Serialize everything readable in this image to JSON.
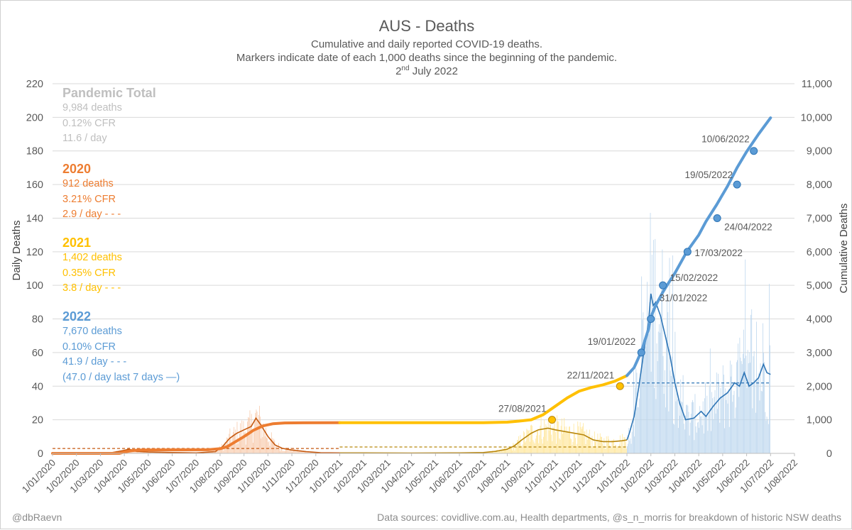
{
  "chart_data": {
    "type": "combo",
    "title": "AUS - Deaths",
    "subtitle_lines": [
      "Cumulative and daily reported COVID-19 deaths.",
      "Markers indicate date of each 1,000 deaths since the beginning of the pandemic."
    ],
    "date_line": {
      "day": "2",
      "suffix": "nd",
      "rest": " July 2022"
    },
    "ylabel_left": "Daily Deaths",
    "ylabel_right": "Cumulative Deaths",
    "ylim_left": [
      0,
      220
    ],
    "ylim_right": [
      0,
      11000
    ],
    "left_ticks": [
      "0",
      "20",
      "40",
      "60",
      "80",
      "100",
      "120",
      "140",
      "160",
      "180",
      "200",
      "220"
    ],
    "right_ticks": [
      "0",
      "1,000",
      "2,000",
      "3,000",
      "4,000",
      "5,000",
      "6,000",
      "7,000",
      "8,000",
      "9,000",
      "10,000",
      "11,000"
    ],
    "x_ticks": [
      "1/01/2020",
      "1/02/2020",
      "1/03/2020",
      "1/04/2020",
      "1/05/2020",
      "1/06/2020",
      "1/07/2020",
      "1/08/2020",
      "1/09/2020",
      "1/10/2020",
      "1/11/2020",
      "1/12/2020",
      "1/01/2021",
      "1/02/2021",
      "1/03/2021",
      "1/04/2021",
      "1/05/2021",
      "1/06/2021",
      "1/07/2021",
      "1/08/2021",
      "1/09/2021",
      "1/10/2021",
      "1/11/2021",
      "1/12/2021",
      "1/01/2022",
      "1/02/2022",
      "1/03/2022",
      "1/04/2022",
      "1/05/2022",
      "1/06/2022",
      "1/07/2022",
      "1/08/2022"
    ],
    "colors": {
      "y2020": "#ED7D31",
      "y2021": "#FFC000",
      "y2022": "#5B9BD5",
      "total": "#BFBFBF",
      "axis": "#595959",
      "grid": "#D9D9D9",
      "dark2021": "#B8860B",
      "dark2022": "#2E75B6",
      "dark2020": "#C55A11"
    },
    "cumulative": [
      [
        0,
        0
      ],
      [
        2.8,
        0
      ],
      [
        3.0,
        40
      ],
      [
        3.3,
        80
      ],
      [
        3.6,
        100
      ],
      [
        4.5,
        103
      ],
      [
        5.5,
        106
      ],
      [
        6.5,
        108
      ],
      [
        7.0,
        140
      ],
      [
        7.3,
        200
      ],
      [
        7.6,
        330
      ],
      [
        8.0,
        500
      ],
      [
        8.4,
        690
      ],
      [
        8.8,
        820
      ],
      [
        9.2,
        880
      ],
      [
        9.7,
        905
      ],
      [
        10.5,
        910
      ],
      [
        12.0,
        912
      ],
      [
        12,
        912
      ],
      [
        14,
        912
      ],
      [
        16,
        913
      ],
      [
        18,
        915
      ],
      [
        19.0,
        930
      ],
      [
        19.5,
        960
      ],
      [
        20.0,
        1000
      ],
      [
        20.5,
        1150
      ],
      [
        21.0,
        1400
      ],
      [
        21.5,
        1650
      ],
      [
        22.0,
        1850
      ],
      [
        22.5,
        1960
      ],
      [
        23.0,
        2040
      ],
      [
        23.5,
        2150
      ],
      [
        24.0,
        2314
      ],
      [
        24,
        2314
      ],
      [
        24.3,
        2550
      ],
      [
        24.6,
        3030
      ],
      [
        24.9,
        3700
      ],
      [
        25.0,
        4060
      ],
      [
        25.2,
        4400
      ],
      [
        25.5,
        4800
      ],
      [
        25.7,
        5030
      ],
      [
        26.0,
        5360
      ],
      [
        26.5,
        6000
      ],
      [
        27.0,
        6500
      ],
      [
        27.3,
        6900
      ],
      [
        27.75,
        7400
      ],
      [
        28.2,
        7950
      ],
      [
        28.6,
        8500
      ],
      [
        29.0,
        8980
      ],
      [
        29.5,
        9500
      ],
      [
        30.0,
        9984
      ]
    ],
    "daily_smooth": [
      [
        0,
        0
      ],
      [
        2.5,
        0.5
      ],
      [
        2.9,
        1.5
      ],
      [
        3.2,
        2.5
      ],
      [
        3.5,
        1.2
      ],
      [
        4,
        0.8
      ],
      [
        5,
        0.5
      ],
      [
        6,
        0.3
      ],
      [
        6.8,
        1
      ],
      [
        7.1,
        4
      ],
      [
        7.4,
        9
      ],
      [
        7.7,
        12
      ],
      [
        8.0,
        14
      ],
      [
        8.3,
        16
      ],
      [
        8.5,
        21
      ],
      [
        8.7,
        17
      ],
      [
        9.0,
        10
      ],
      [
        9.3,
        5
      ],
      [
        9.6,
        3
      ],
      [
        10,
        2
      ],
      [
        10.6,
        1
      ],
      [
        11.2,
        0.4
      ],
      [
        12,
        0.3
      ],
      [
        13,
        0.3
      ],
      [
        15,
        0.2
      ],
      [
        17,
        0.3
      ],
      [
        18,
        0.5
      ],
      [
        18.5,
        1.2
      ],
      [
        19,
        2.5
      ],
      [
        19.3,
        4.5
      ],
      [
        19.6,
        8
      ],
      [
        20.0,
        12
      ],
      [
        20.3,
        14
      ],
      [
        20.7,
        15
      ],
      [
        21.0,
        14
      ],
      [
        21.4,
        13
      ],
      [
        21.8,
        12
      ],
      [
        22.2,
        11
      ],
      [
        22.6,
        8
      ],
      [
        23.0,
        7
      ],
      [
        23.4,
        7
      ],
      [
        23.8,
        7.5
      ],
      [
        24,
        8
      ],
      [
        24.1,
        12
      ],
      [
        24.3,
        22
      ],
      [
        24.5,
        40
      ],
      [
        24.7,
        60
      ],
      [
        24.9,
        78
      ],
      [
        25.0,
        95
      ],
      [
        25.1,
        88
      ],
      [
        25.2,
        90
      ],
      [
        25.4,
        82
      ],
      [
        25.6,
        70
      ],
      [
        25.8,
        58
      ],
      [
        26.0,
        42
      ],
      [
        26.2,
        30
      ],
      [
        26.45,
        20
      ],
      [
        26.8,
        21
      ],
      [
        27.1,
        25
      ],
      [
        27.3,
        22
      ],
      [
        27.6,
        28
      ],
      [
        27.9,
        33
      ],
      [
        28.2,
        36
      ],
      [
        28.5,
        42
      ],
      [
        28.7,
        40
      ],
      [
        28.9,
        48
      ],
      [
        29.1,
        40
      ],
      [
        29.3,
        42
      ],
      [
        29.5,
        45
      ],
      [
        29.7,
        53
      ],
      [
        29.85,
        48
      ],
      [
        30.0,
        47
      ]
    ],
    "avg_lines": [
      {
        "from": 0,
        "to": 12,
        "value": 2.9,
        "color": "#C55A11"
      },
      {
        "from": 12,
        "to": 24,
        "value": 3.8,
        "color": "#B8860B"
      },
      {
        "from": 24,
        "to": 30,
        "value": 41.9,
        "color": "#2E75B6"
      }
    ],
    "markers": [
      {
        "x": 20.87,
        "cum": 1000,
        "label": "27/08/2021"
      },
      {
        "x": 23.71,
        "cum": 2000,
        "label": "22/11/2021"
      },
      {
        "x": 24.6,
        "cum": 3000,
        "label": "19/01/2022"
      },
      {
        "x": 25.0,
        "cum": 4000,
        "label": "31/01/2022"
      },
      {
        "x": 25.5,
        "cum": 5000,
        "label": "15/02/2022"
      },
      {
        "x": 26.53,
        "cum": 6000,
        "label": "17/03/2022"
      },
      {
        "x": 27.77,
        "cum": 7000,
        "label": "24/04/2022"
      },
      {
        "x": 28.6,
        "cum": 8000,
        "label": "19/05/2022"
      },
      {
        "x": 29.3,
        "cum": 9000,
        "label": "10/06/2022"
      }
    ]
  },
  "stats": {
    "total": {
      "heading": "Pandemic Total",
      "deaths": "9,984 deaths",
      "cfr": "0.12% CFR",
      "per_day": "11.6 / day"
    },
    "y2020": {
      "heading": "2020",
      "deaths": "912 deaths",
      "cfr": "3.21% CFR",
      "per_day": "2.9 / day - - -"
    },
    "y2021": {
      "heading": "2021",
      "deaths": "1,402 deaths",
      "cfr": "0.35% CFR",
      "per_day": "3.8 / day - - -"
    },
    "y2022": {
      "heading": "2022",
      "deaths": "7,670 deaths",
      "cfr": "0.10% CFR",
      "per_day": "41.9 / day - - -",
      "last7": "(47.0 / day last 7 days —)"
    }
  },
  "footer": {
    "credit": "@dbRaevn",
    "sources": "Data sources: covidlive.com.au, Health departments, @s_n_morris for breakdown of historic NSW deaths"
  }
}
